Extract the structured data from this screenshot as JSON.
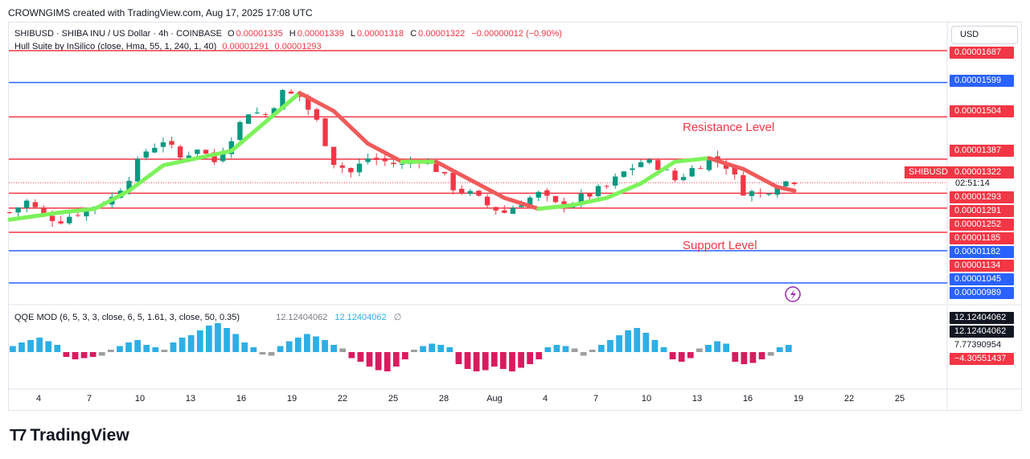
{
  "header": {
    "attribution": "CROWNGIMS created with TradingView.com, Aug 17, 2025 17:08 UTC"
  },
  "legend": {
    "symbol": "SHIBUSD · SHIBA INU / US Dollar · 4h · COINBASE",
    "o_label": "O",
    "o_value": "0.00001335",
    "h_label": "H",
    "h_value": "0.00001339",
    "l_label": "L",
    "l_value": "0.00001318",
    "c_label": "C",
    "c_value": "0.00001322",
    "change": "−0.00000012 (−0.90%)",
    "indicator": "Hull Suite by InSilico (close, Hma, 55, 1, 240, 1, 40)",
    "ind_value1": "0.00001291",
    "ind_value2": "0.00001293"
  },
  "qqe_legend": {
    "name": "QQE MOD (6, 5, 3, 3, close, 6, 5, 1.61, 3, close, 50, 0.35)",
    "value1": "12.12404062",
    "value2": "12.12404062",
    "null_symbol": "∅"
  },
  "currency": "USD",
  "symbol_tag": "SHIBUSD",
  "countdown": "02:51:14",
  "annotations": {
    "resistance": "Resistance Level",
    "support": "Support Level"
  },
  "price_tags": [
    {
      "label": "0.00001687",
      "style": "red"
    },
    {
      "label": "0.00001599",
      "style": "blue"
    },
    {
      "label": "0.00001504",
      "style": "red"
    },
    {
      "label": "0.00001387",
      "style": "red"
    },
    {
      "label": "0.00001322",
      "style": "red"
    },
    {
      "label": "0.00001293",
      "style": "red"
    },
    {
      "label": "0.00001291",
      "style": "red"
    },
    {
      "label": "0.00001252",
      "style": "red"
    },
    {
      "label": "0.00001185",
      "style": "red"
    },
    {
      "label": "0.00001182",
      "style": "blue"
    },
    {
      "label": "0.00001134",
      "style": "red"
    },
    {
      "label": "0.00001045",
      "style": "blue"
    },
    {
      "label": "0.00000989",
      "style": "blue"
    }
  ],
  "qqe_tags": [
    {
      "label": "12.12404062",
      "style": "dark"
    },
    {
      "label": "12.12404062",
      "style": "dark"
    },
    {
      "label": "7.77390954",
      "style": "plain"
    },
    {
      "label": "−4.30551437",
      "style": "red"
    }
  ],
  "x_labels": [
    "4",
    "7",
    "10",
    "13",
    "16",
    "19",
    "22",
    "25",
    "28",
    "Aug",
    "4",
    "7",
    "10",
    "13",
    "16",
    "19",
    "22",
    "25"
  ],
  "brand": "TradingView",
  "colors": {
    "red": "#f23645",
    "blue": "#2962ff",
    "green": "#089981",
    "hull_up": "#7cf25a",
    "hull_down": "#f05a5a",
    "qqe_blue": "#2eaee6",
    "qqe_red": "#d81b60",
    "qqe_gray": "#9e9e9e"
  },
  "chart_data": {
    "type": "candlestick",
    "timeframe": "4h",
    "horizontal_levels": [
      {
        "price": 1.687e-05,
        "color": "#f23645"
      },
      {
        "price": 1.599e-05,
        "color": "#2962ff"
      },
      {
        "price": 1.504e-05,
        "color": "#f23645"
      },
      {
        "price": 1.387e-05,
        "color": "#f23645"
      },
      {
        "price": 1.293e-05,
        "color": "#f23645"
      },
      {
        "price": 1.252e-05,
        "color": "#f23645"
      },
      {
        "price": 1.185e-05,
        "color": "#f23645"
      },
      {
        "price": 1.134e-05,
        "color": "#2962ff"
      },
      {
        "price": 1.045e-05,
        "color": "#2962ff"
      }
    ],
    "close_path": [
      [
        0,
        1.24e-05
      ],
      [
        2,
        1.27e-05
      ],
      [
        4,
        1.23e-05
      ],
      [
        6,
        1.22e-05
      ],
      [
        8,
        1.24e-05
      ],
      [
        10,
        1.26e-05
      ],
      [
        12,
        1.28e-05
      ],
      [
        14,
        1.34e-05
      ],
      [
        16,
        1.41e-05
      ],
      [
        18,
        1.44e-05
      ],
      [
        20,
        1.39e-05
      ],
      [
        22,
        1.42e-05
      ],
      [
        24,
        1.38e-05
      ],
      [
        26,
        1.45e-05
      ],
      [
        28,
        1.52e-05
      ],
      [
        30,
        1.51e-05
      ],
      [
        32,
        1.57e-05
      ],
      [
        34,
        1.56e-05
      ],
      [
        36,
        1.49e-05
      ],
      [
        38,
        1.38e-05
      ],
      [
        40,
        1.35e-05
      ],
      [
        42,
        1.39e-05
      ],
      [
        44,
        1.38e-05
      ],
      [
        46,
        1.37e-05
      ],
      [
        48,
        1.39e-05
      ],
      [
        50,
        1.36e-05
      ],
      [
        52,
        1.31e-05
      ],
      [
        54,
        1.29e-05
      ],
      [
        56,
        1.26e-05
      ],
      [
        58,
        1.24e-05
      ],
      [
        60,
        1.27e-05
      ],
      [
        62,
        1.29e-05
      ],
      [
        64,
        1.26e-05
      ],
      [
        66,
        1.27e-05
      ],
      [
        68,
        1.29e-05
      ],
      [
        70,
        1.31e-05
      ],
      [
        72,
        1.35e-05
      ],
      [
        74,
        1.38e-05
      ],
      [
        76,
        1.37e-05
      ],
      [
        78,
        1.33e-05
      ],
      [
        80,
        1.36e-05
      ],
      [
        82,
        1.39e-05
      ],
      [
        84,
        1.37e-05
      ],
      [
        86,
        1.3e-05
      ],
      [
        88,
        1.29e-05
      ],
      [
        90,
        1.32e-05
      ],
      [
        92,
        1.33e-05
      ]
    ],
    "hull_path": [
      [
        0,
        1.22e-05
      ],
      [
        6,
        1.24e-05
      ],
      [
        10,
        1.25e-05
      ],
      [
        14,
        1.3e-05
      ],
      [
        18,
        1.37e-05
      ],
      [
        22,
        1.39e-05
      ],
      [
        26,
        1.41e-05
      ],
      [
        30,
        1.49e-05
      ],
      [
        34,
        1.57e-05
      ],
      [
        38,
        1.52e-05
      ],
      [
        42,
        1.43e-05
      ],
      [
        46,
        1.38e-05
      ],
      [
        50,
        1.38e-05
      ],
      [
        54,
        1.33e-05
      ],
      [
        58,
        1.28e-05
      ],
      [
        62,
        1.25e-05
      ],
      [
        66,
        1.26e-05
      ],
      [
        70,
        1.28e-05
      ],
      [
        74,
        1.32e-05
      ],
      [
        78,
        1.38e-05
      ],
      [
        82,
        1.39e-05
      ],
      [
        86,
        1.36e-05
      ],
      [
        90,
        1.31e-05
      ],
      [
        92,
        1.3e-05
      ]
    ],
    "qqe_histogram": [
      5,
      8,
      10,
      12,
      9,
      6,
      -4,
      -6,
      -5,
      -4,
      -3,
      2,
      5,
      8,
      10,
      6,
      4,
      2,
      8,
      12,
      14,
      18,
      22,
      24,
      20,
      15,
      8,
      4,
      -2,
      -3,
      5,
      9,
      12,
      15,
      13,
      10,
      6,
      3,
      -5,
      -8,
      -12,
      -15,
      -16,
      -12,
      -6,
      2,
      5,
      7,
      6,
      4,
      -10,
      -14,
      -16,
      -15,
      -12,
      -14,
      -16,
      -13,
      -10,
      -6,
      4,
      6,
      5,
      3,
      -3,
      2,
      6,
      10,
      14,
      18,
      20,
      16,
      10,
      4,
      -6,
      -8,
      -5,
      3,
      6,
      9,
      7,
      -8,
      -10,
      -9,
      -6,
      -3,
      4,
      6
    ]
  }
}
